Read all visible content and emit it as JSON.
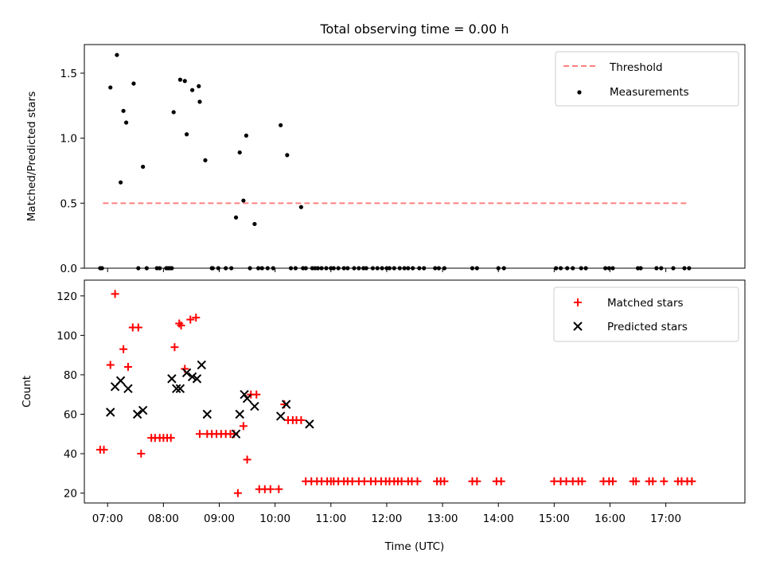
{
  "chart_data": [
    {
      "type": "scatter",
      "title": "Total observing time = 0.00 h",
      "ylabel": "Matched/Predicted stars",
      "xlabel": "",
      "xlim": [
        "06:35",
        "18:25"
      ],
      "ylim": [
        0,
        1.72
      ],
      "yticks": [
        "0.0",
        "0.5",
        "1.0",
        "1.5"
      ],
      "grid": false,
      "legend_position": "top-right",
      "threshold": {
        "name": "Threshold",
        "value": 0.5,
        "x_start": "06:55",
        "x_end": "17:25",
        "color": "#ff8080",
        "style": "dashed"
      },
      "series": [
        {
          "name": "Measurements",
          "color": "#000000",
          "x": [
            "06:52",
            "06:54",
            "07:03",
            "07:10",
            "07:14",
            "07:17",
            "07:20",
            "07:28",
            "07:33",
            "07:38",
            "07:42",
            "07:53",
            "07:56",
            "08:03",
            "08:05",
            "08:07",
            "08:09",
            "08:11",
            "08:18",
            "08:23",
            "08:25",
            "08:31",
            "08:38",
            "08:39",
            "08:45",
            "08:52",
            "08:59",
            "08:53",
            "09:07",
            "09:13",
            "09:18",
            "09:22",
            "09:26",
            "09:29",
            "09:33",
            "09:38",
            "09:42",
            "09:46",
            "09:52",
            "09:58",
            "10:06",
            "10:13",
            "10:17",
            "10:22",
            "10:28",
            "10:30",
            "10:33",
            "10:40",
            "10:43",
            "10:46",
            "10:50",
            "10:55",
            "11:00",
            "11:03",
            "11:08",
            "11:14",
            "11:18",
            "11:25",
            "11:30",
            "11:35",
            "11:38",
            "11:45",
            "11:50",
            "11:55",
            "12:00",
            "12:03",
            "12:08",
            "12:14",
            "12:19",
            "12:23",
            "12:28",
            "12:35",
            "12:40",
            "12:52",
            "12:56",
            "13:02",
            "13:32",
            "13:37",
            "14:00",
            "14:06",
            "15:02",
            "15:07",
            "15:14",
            "15:20",
            "15:29",
            "15:34",
            "15:55",
            "15:59",
            "16:03",
            "16:30",
            "16:33",
            "16:50",
            "16:55",
            "17:08",
            "17:20",
            "17:25"
          ],
          "y": [
            0,
            0,
            1.39,
            1.64,
            0.66,
            1.21,
            1.12,
            1.42,
            0,
            0.78,
            0,
            0,
            0,
            0,
            0,
            0,
            0,
            1.2,
            1.45,
            1.44,
            1.03,
            1.37,
            1.4,
            1.28,
            0.83,
            0,
            0,
            0,
            0,
            0,
            0.39,
            0.89,
            0.52,
            1.02,
            0,
            0.34,
            0,
            0,
            0,
            0,
            1.1,
            0.87,
            0,
            0,
            0.47,
            0,
            0,
            0,
            0,
            0,
            0,
            0,
            0,
            0,
            0,
            0,
            0,
            0,
            0,
            0,
            0,
            0,
            0,
            0,
            0,
            0,
            0,
            0,
            0,
            0,
            0,
            0,
            0,
            0,
            0,
            0,
            0,
            0,
            0,
            0,
            0,
            0,
            0,
            0,
            0,
            0,
            0,
            0,
            0,
            0,
            0,
            0,
            0,
            0,
            0,
            0
          ]
        }
      ]
    },
    {
      "type": "scatter",
      "title": "",
      "xlabel": "Time (UTC)",
      "ylabel": "Count",
      "xlim": [
        "06:35",
        "18:25"
      ],
      "ylim": [
        15,
        128
      ],
      "xticks": [
        "07:00",
        "08:00",
        "09:00",
        "10:00",
        "11:00",
        "12:00",
        "13:00",
        "14:00",
        "15:00",
        "16:00",
        "17:00"
      ],
      "yticks": [
        "20",
        "40",
        "60",
        "80",
        "100",
        "120"
      ],
      "grid": false,
      "legend_position": "top-right",
      "series": [
        {
          "name": "Matched stars",
          "marker": "+",
          "color": "#ff0000",
          "x": [
            "06:52",
            "06:56",
            "07:03",
            "07:08",
            "07:17",
            "07:22",
            "07:27",
            "07:33",
            "07:36",
            "07:47",
            "07:51",
            "07:56",
            "08:00",
            "08:04",
            "08:08",
            "08:12",
            "08:17",
            "08:19",
            "08:23",
            "08:29",
            "08:35",
            "08:39",
            "08:47",
            "08:52",
            "08:57",
            "09:02",
            "09:07",
            "09:12",
            "09:16",
            "09:20",
            "09:26",
            "09:30",
            "09:34",
            "09:40",
            "09:43",
            "09:49",
            "09:55",
            "10:04",
            "10:10",
            "10:14",
            "10:19",
            "10:23",
            "10:28",
            "10:33",
            "10:39",
            "10:45",
            "10:50",
            "10:56",
            "11:00",
            "11:03",
            "11:08",
            "11:14",
            "11:18",
            "11:23",
            "11:30",
            "11:36",
            "11:43",
            "11:48",
            "11:54",
            "11:59",
            "12:03",
            "12:08",
            "12:12",
            "12:16",
            "12:23",
            "12:27",
            "12:33",
            "12:54",
            "12:58",
            "13:02",
            "13:32",
            "13:37",
            "13:58",
            "14:03",
            "15:00",
            "15:07",
            "15:13",
            "15:20",
            "15:26",
            "15:30",
            "15:53",
            "15:59",
            "16:03",
            "16:25",
            "16:28",
            "16:42",
            "16:46",
            "16:58",
            "17:13",
            "17:17",
            "17:23",
            "17:28"
          ],
          "y": [
            42,
            42,
            85,
            121,
            93,
            84,
            104,
            104,
            40,
            48,
            48,
            48,
            48,
            48,
            48,
            94,
            106,
            105,
            83,
            108,
            109,
            50,
            50,
            50,
            50,
            50,
            50,
            50,
            50,
            20,
            54,
            37,
            70,
            70,
            22,
            22,
            22,
            22,
            65,
            57,
            57,
            57,
            57,
            26,
            26,
            26,
            26,
            26,
            26,
            26,
            26,
            26,
            26,
            26,
            26,
            26,
            26,
            26,
            26,
            26,
            26,
            26,
            26,
            26,
            26,
            26,
            26,
            26,
            26,
            26,
            26,
            26,
            26,
            26,
            26,
            26,
            26,
            26,
            26,
            26,
            26,
            26,
            26,
            26,
            26,
            26,
            26,
            26,
            26,
            26,
            26,
            26
          ]
        },
        {
          "name": "Predicted stars",
          "marker": "x",
          "color": "#000000",
          "x": [
            "07:03",
            "07:08",
            "07:14",
            "07:22",
            "07:32",
            "07:38",
            "08:09",
            "08:14",
            "08:18",
            "08:25",
            "08:31",
            "08:36",
            "08:41",
            "08:47",
            "09:18",
            "09:22",
            "09:27",
            "09:30",
            "09:38",
            "10:06",
            "10:12",
            "10:37"
          ],
          "y": [
            61,
            74,
            77,
            73,
            60,
            62,
            78,
            73,
            73,
            81,
            79,
            78,
            85,
            60,
            50,
            60,
            70,
            68,
            64,
            59,
            65,
            55
          ]
        }
      ]
    }
  ]
}
